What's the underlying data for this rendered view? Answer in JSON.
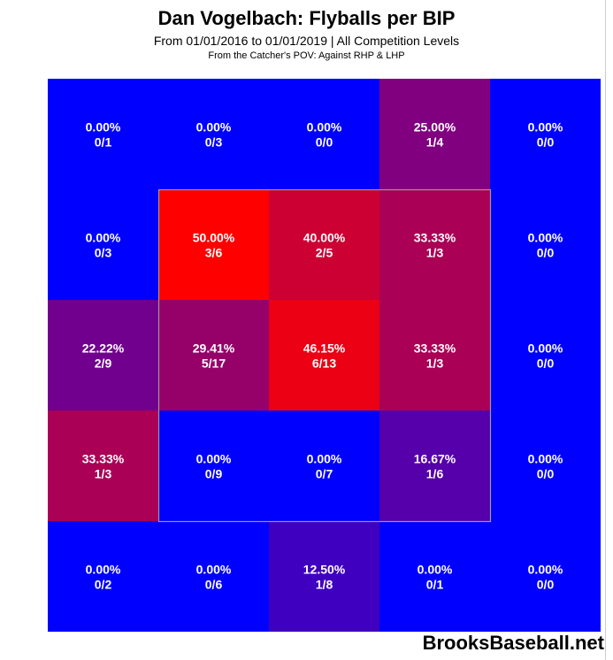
{
  "title": "Dan Vogelbach: Flyballs per BIP",
  "subtitle": "From 01/01/2016 to 01/01/2019 | All Competition Levels",
  "subtitle2": "From the Catcher's POV:   Against RHP & LHP",
  "watermark": "BrooksBaseball.net",
  "colors": {
    "low": "#0000ff",
    "high": "#ff0000",
    "strike_zone_outline": "#999999"
  },
  "chart_data": {
    "type": "heatmap",
    "rows": 5,
    "cols": 5,
    "strike_zone": {
      "rows": [
        1,
        3
      ],
      "cols": [
        1,
        3
      ]
    },
    "cells": [
      [
        {
          "pct": "0.00%",
          "count": "0/1",
          "value": 0.0
        },
        {
          "pct": "0.00%",
          "count": "0/3",
          "value": 0.0
        },
        {
          "pct": "0.00%",
          "count": "0/0",
          "value": 0.0
        },
        {
          "pct": "25.00%",
          "count": "1/4",
          "value": 25.0
        },
        {
          "pct": "0.00%",
          "count": "0/0",
          "value": 0.0
        }
      ],
      [
        {
          "pct": "0.00%",
          "count": "0/3",
          "value": 0.0
        },
        {
          "pct": "50.00%",
          "count": "3/6",
          "value": 50.0
        },
        {
          "pct": "40.00%",
          "count": "2/5",
          "value": 40.0
        },
        {
          "pct": "33.33%",
          "count": "1/3",
          "value": 33.33
        },
        {
          "pct": "0.00%",
          "count": "0/0",
          "value": 0.0
        }
      ],
      [
        {
          "pct": "22.22%",
          "count": "2/9",
          "value": 22.22
        },
        {
          "pct": "29.41%",
          "count": "5/17",
          "value": 29.41
        },
        {
          "pct": "46.15%",
          "count": "6/13",
          "value": 46.15
        },
        {
          "pct": "33.33%",
          "count": "1/3",
          "value": 33.33
        },
        {
          "pct": "0.00%",
          "count": "0/0",
          "value": 0.0
        }
      ],
      [
        {
          "pct": "33.33%",
          "count": "1/3",
          "value": 33.33
        },
        {
          "pct": "0.00%",
          "count": "0/9",
          "value": 0.0
        },
        {
          "pct": "0.00%",
          "count": "0/7",
          "value": 0.0
        },
        {
          "pct": "16.67%",
          "count": "1/6",
          "value": 16.67
        },
        {
          "pct": "0.00%",
          "count": "0/0",
          "value": 0.0
        }
      ],
      [
        {
          "pct": "0.00%",
          "count": "0/2",
          "value": 0.0
        },
        {
          "pct": "0.00%",
          "count": "0/6",
          "value": 0.0
        },
        {
          "pct": "12.50%",
          "count": "1/8",
          "value": 12.5
        },
        {
          "pct": "0.00%",
          "count": "0/1",
          "value": 0.0
        },
        {
          "pct": "0.00%",
          "count": "0/0",
          "value": 0.0
        }
      ]
    ]
  }
}
